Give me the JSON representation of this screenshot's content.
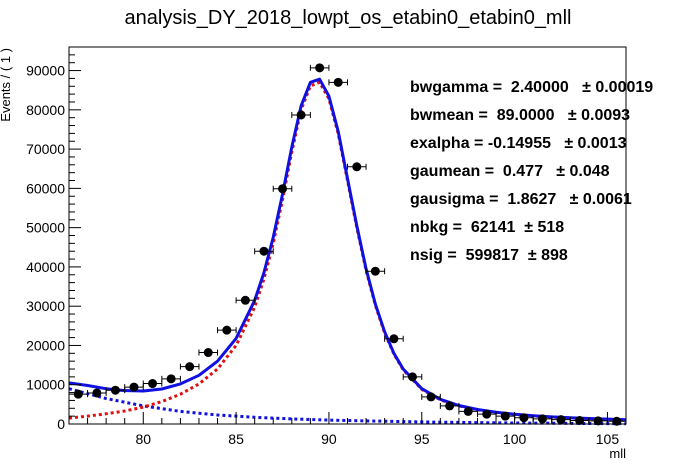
{
  "chart_data": {
    "type": "scatter",
    "title": "analysis_DY_2018_lowpt_os_etabin0_etabin0_mll",
    "xlabel": "mll",
    "ylabel": "Events / ( 1 )",
    "xlim": [
      76,
      106
    ],
    "ylim": [
      0,
      96000
    ],
    "xticks": [
      80,
      85,
      90,
      95,
      100,
      105
    ],
    "yticks": [
      0,
      10000,
      20000,
      30000,
      40000,
      50000,
      60000,
      70000,
      80000,
      90000
    ],
    "grid": false,
    "series": [
      {
        "kind": "data_points_with_errors",
        "color": "#000000",
        "x": [
          76.5,
          77.5,
          78.5,
          79.5,
          80.5,
          81.5,
          82.5,
          83.5,
          84.5,
          85.5,
          86.5,
          87.5,
          88.5,
          89.5,
          90.5,
          91.5,
          92.5,
          93.5,
          94.5,
          95.5,
          96.5,
          97.5,
          98.5,
          99.5,
          100.5,
          101.5,
          102.5,
          103.5,
          104.5,
          105.5
        ],
        "y": [
          7600,
          7900,
          8600,
          9400,
          10300,
          11500,
          14600,
          18200,
          23900,
          31500,
          44000,
          59900,
          78700,
          90700,
          87000,
          65500,
          38900,
          21700,
          12000,
          6900,
          4600,
          3200,
          2500,
          2000,
          1600,
          1300,
          1100,
          900,
          800,
          700
        ],
        "x_err": 0.5
      },
      {
        "kind": "total_fit",
        "color": "#1010e0",
        "x": [
          76,
          77,
          78,
          79,
          80,
          81,
          82,
          83,
          84,
          85,
          86,
          86.5,
          87,
          87.5,
          88,
          88.5,
          89,
          89.5,
          90,
          90.5,
          91,
          91.5,
          92,
          92.5,
          93,
          93.5,
          94,
          95,
          96,
          97,
          98,
          99,
          100,
          101,
          102,
          103,
          104,
          105,
          106
        ],
        "y": [
          10500,
          9800,
          9000,
          8500,
          8400,
          8900,
          10200,
          12400,
          16000,
          21800,
          31500,
          38500,
          47500,
          58500,
          70500,
          81000,
          87000,
          87800,
          83500,
          74500,
          62500,
          50500,
          39500,
          30500,
          23500,
          18000,
          14000,
          9000,
          6300,
          4700,
          3700,
          3000,
          2500,
          2100,
          1800,
          1600,
          1400,
          1250,
          1100
        ]
      },
      {
        "kind": "signal_component",
        "color": "#e01010",
        "x": [
          76,
          77,
          78,
          79,
          80,
          81,
          82,
          83,
          84,
          85,
          86,
          86.5,
          87,
          87.5,
          88,
          88.5,
          89,
          89.5,
          90,
          90.5,
          91,
          91.5,
          92,
          92.5,
          93,
          93.5,
          94,
          95,
          96,
          97,
          98,
          99,
          100,
          101,
          102,
          103,
          104,
          105,
          106
        ],
        "y": [
          1500,
          2000,
          2600,
          3300,
          4300,
          5700,
          7600,
          10200,
          14000,
          20000,
          29800,
          36900,
          46000,
          57100,
          69300,
          80000,
          86100,
          87000,
          82800,
          73900,
          62000,
          50000,
          39100,
          30200,
          23200,
          17800,
          13800,
          8800,
          6150,
          4580,
          3590,
          2910,
          2420,
          2030,
          1740,
          1550,
          1360,
          1210,
          1070
        ]
      },
      {
        "kind": "background_component",
        "color": "#1010e0",
        "x": [
          76,
          78,
          80,
          82,
          84,
          86,
          88,
          90,
          92,
          94,
          96,
          98,
          100,
          102,
          104,
          106
        ],
        "y": [
          9000,
          6500,
          4600,
          3200,
          2300,
          1700,
          1300,
          1000,
          800,
          600,
          450,
          350,
          250,
          200,
          130,
          80
        ]
      }
    ],
    "annotations": [
      "bwgamma =  2.40000   ± 0.00019",
      "bwmean =  89.0000   ± 0.0093",
      "exalpha = -0.14955   ± 0.0013",
      "gaumean =  0.477   ± 0.048",
      "gausigma =  1.8627   ± 0.0061",
      "nbkg =  62141  ± 518",
      "nsig =  599817  ± 898"
    ]
  }
}
